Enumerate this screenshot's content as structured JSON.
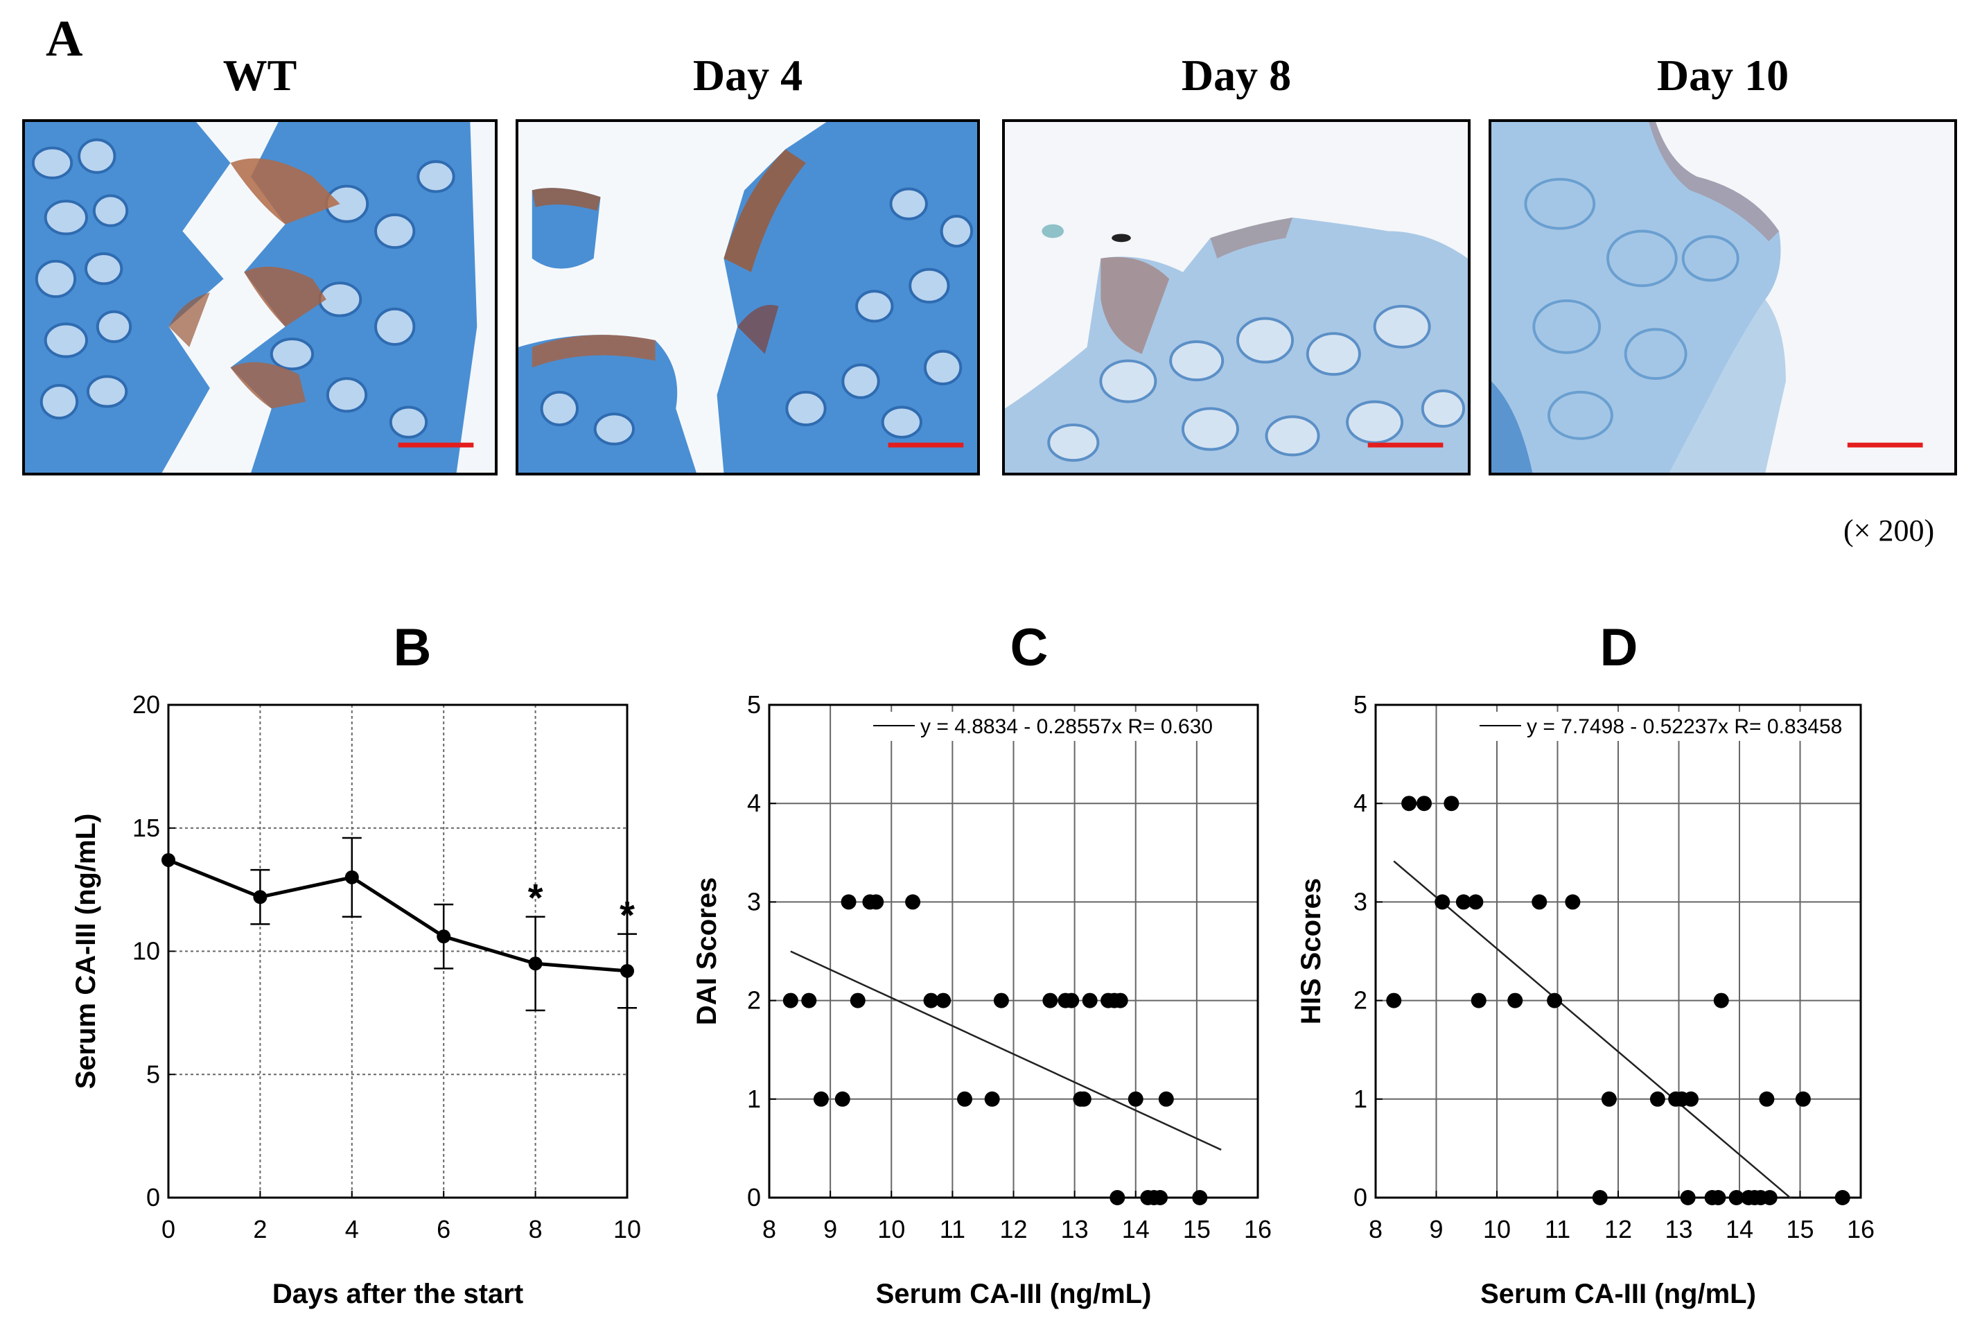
{
  "panel_a": {
    "letter": "A",
    "images": [
      {
        "title": "WT"
      },
      {
        "title": "Day 4"
      },
      {
        "title": "Day 8"
      },
      {
        "title": "Day 10"
      }
    ],
    "magnification": "(× 200)",
    "colors": {
      "tissue_blue": "#3a7fc8",
      "stain_brown": "#9a5a3a",
      "scale_bar": "#e41d1d"
    }
  },
  "chart_data": [
    {
      "panel": "B",
      "type": "line",
      "x": [
        0,
        2,
        4,
        6,
        8,
        10
      ],
      "series": [
        {
          "values": [
            13.7,
            12.2,
            13.0,
            10.6,
            9.5,
            9.2
          ]
        }
      ],
      "errors": [
        0,
        1.1,
        1.6,
        1.3,
        1.9,
        1.5
      ],
      "annotations": [
        {
          "x": 8,
          "text": "*"
        },
        {
          "x": 10,
          "text": "*"
        }
      ],
      "xlabel": "Days after the start",
      "ylabel": "Serum CA-III (ng/mL)",
      "xlim": [
        0,
        10
      ],
      "ylim": [
        0,
        20
      ],
      "xticks": [
        "0",
        "2",
        "4",
        "6",
        "8",
        "10"
      ],
      "yticks": [
        "0",
        "5",
        "10",
        "15",
        "20"
      ],
      "grid": true
    },
    {
      "panel": "C",
      "type": "scatter",
      "points": [
        [
          8.35,
          2
        ],
        [
          8.65,
          2
        ],
        [
          8.85,
          1
        ],
        [
          9.2,
          1
        ],
        [
          9.3,
          3
        ],
        [
          9.45,
          2
        ],
        [
          9.65,
          3
        ],
        [
          9.75,
          3
        ],
        [
          10.35,
          3
        ],
        [
          10.65,
          2
        ],
        [
          10.85,
          2
        ],
        [
          11.2,
          1
        ],
        [
          11.65,
          1
        ],
        [
          11.8,
          2
        ],
        [
          12.6,
          2
        ],
        [
          12.85,
          2
        ],
        [
          12.95,
          2
        ],
        [
          13.1,
          1
        ],
        [
          13.15,
          1
        ],
        [
          13.25,
          2
        ],
        [
          13.55,
          2
        ],
        [
          13.65,
          2
        ],
        [
          13.7,
          0
        ],
        [
          13.75,
          2
        ],
        [
          14.0,
          1
        ],
        [
          14.2,
          0
        ],
        [
          14.3,
          0
        ],
        [
          14.4,
          0
        ],
        [
          14.5,
          1
        ],
        [
          15.05,
          0
        ]
      ],
      "fit_line": {
        "x": [
          8.35,
          15.4
        ]
      },
      "legend_text": "y = 4.8834 - 0.28557x   R= 0.630",
      "xlabel": "Serum CA-III (ng/mL)",
      "ylabel": "DAI Scores",
      "xlim": [
        8,
        16
      ],
      "ylim": [
        0,
        5
      ],
      "xticks": [
        "8",
        "9",
        "10",
        "11",
        "12",
        "13",
        "14",
        "15",
        "16"
      ],
      "yticks": [
        "0",
        "1",
        "2",
        "3",
        "4",
        "5"
      ],
      "grid": true,
      "fit": {
        "intercept": 4.8834,
        "slope": -0.28557
      }
    },
    {
      "panel": "D",
      "type": "scatter",
      "points": [
        [
          8.3,
          2
        ],
        [
          8.55,
          4
        ],
        [
          8.8,
          4
        ],
        [
          9.25,
          4
        ],
        [
          9.1,
          3
        ],
        [
          9.45,
          3
        ],
        [
          9.65,
          3
        ],
        [
          9.7,
          2
        ],
        [
          10.3,
          2
        ],
        [
          10.7,
          3
        ],
        [
          10.95,
          2
        ],
        [
          11.25,
          3
        ],
        [
          11.7,
          0
        ],
        [
          11.85,
          1
        ],
        [
          12.65,
          1
        ],
        [
          12.95,
          1
        ],
        [
          13.05,
          1
        ],
        [
          13.2,
          1
        ],
        [
          13.15,
          0
        ],
        [
          13.55,
          0
        ],
        [
          13.65,
          0
        ],
        [
          13.7,
          2
        ],
        [
          13.95,
          0
        ],
        [
          14.15,
          0
        ],
        [
          14.25,
          0
        ],
        [
          14.35,
          0
        ],
        [
          14.45,
          1
        ],
        [
          14.5,
          0
        ],
        [
          15.05,
          1
        ],
        [
          15.7,
          0
        ]
      ],
      "fit_line": {
        "x": [
          8.3,
          14.85
        ]
      },
      "legend_text": "y = 7.7498 - 0.52237x   R= 0.83458",
      "xlabel": "Serum CA-III (ng/mL)",
      "ylabel": "HIS Scores",
      "xlim": [
        8,
        16
      ],
      "ylim": [
        0,
        5
      ],
      "xticks": [
        "8",
        "9",
        "10",
        "11",
        "12",
        "13",
        "14",
        "15",
        "16"
      ],
      "yticks": [
        "0",
        "1",
        "2",
        "3",
        "4",
        "5"
      ],
      "grid": true,
      "fit": {
        "intercept": 7.7498,
        "slope": -0.52237
      }
    }
  ]
}
